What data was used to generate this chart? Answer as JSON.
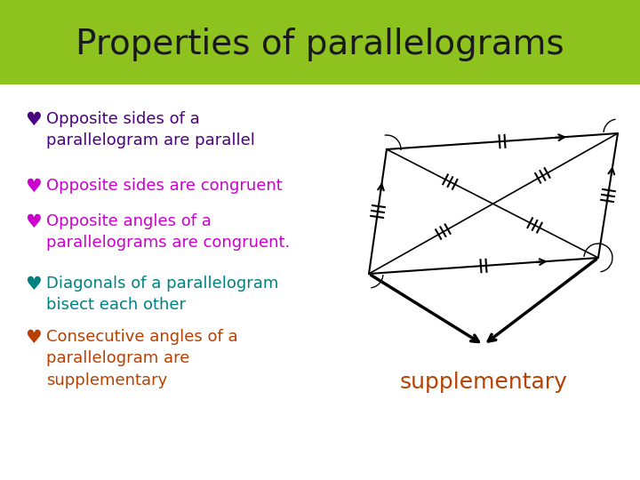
{
  "title": "Properties of parallelograms",
  "title_bg": "#8dc21f",
  "title_color": "#1a1a1a",
  "bg_color": "#ffffff",
  "bullets": [
    {
      "symbol": "♥",
      "sym_color": "#4b0082",
      "text": "Opposite sides of a\nparallelogram are parallel",
      "text_color": "#4b0082"
    },
    {
      "symbol": "♥",
      "sym_color": "#cc00cc",
      "text": "Opposite sides are congruent",
      "text_color": "#cc00cc"
    },
    {
      "symbol": "♥",
      "sym_color": "#cc00cc",
      "text": "Opposite angles of a\nparallelograms are congruent.",
      "text_color": "#cc00cc"
    },
    {
      "symbol": "♥",
      "sym_color": "#008080",
      "text": "Diagonals of a parallelogram\nbisect each other",
      "text_color": "#008080"
    },
    {
      "symbol": "♥",
      "sym_color": "#b84000",
      "text": "Consecutive angles of a\nparallelogram are\nsupplementary",
      "text_color": "#b84000"
    }
  ],
  "supplementary_color": "#b84000",
  "line_color": "#000000"
}
